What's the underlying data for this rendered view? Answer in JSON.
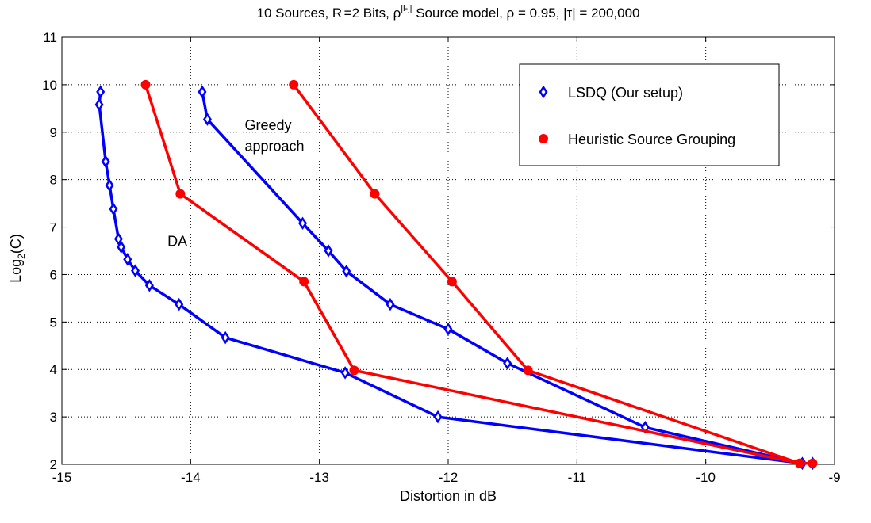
{
  "chart_data": {
    "type": "line",
    "title": {
      "p1": "10 Sources, R",
      "p1_sub": "i",
      "p2": "=2 Bits, ρ",
      "p2_sup": "|i-j|",
      "p3": " Source model, ρ = 0.95, |τ| = 200,000"
    },
    "xlabel": "Distortion in dB",
    "ylabel": {
      "main": "Log",
      "sub": "2",
      "tail": "(C)"
    },
    "xlim": [
      -15,
      -9
    ],
    "ylim": [
      2,
      11
    ],
    "xticks": [
      -15,
      -14,
      -13,
      -12,
      -11,
      -10,
      -9
    ],
    "yticks": [
      2,
      3,
      4,
      5,
      6,
      7,
      8,
      9,
      10,
      11
    ],
    "grid": true,
    "legend_position": "top-right",
    "series": [
      {
        "name": "LSDQ (Our setup)",
        "color": "#0000ff",
        "marker": "diamond",
        "curves": [
          {
            "x": [
              -14.7,
              -14.71,
              -14.66,
              -14.63,
              -14.6,
              -14.56,
              -14.54,
              -14.49,
              -14.43,
              -14.32,
              -14.09,
              -13.73,
              -12.8,
              -12.08,
              -9.25,
              -9.17
            ],
            "y": [
              9.85,
              9.58,
              8.38,
              7.88,
              7.38,
              6.75,
              6.58,
              6.32,
              6.08,
              5.77,
              5.37,
              4.67,
              3.93,
              3.0,
              2.02,
              2.02
            ]
          },
          {
            "x": [
              -13.91,
              -13.87,
              -13.13,
              -12.93,
              -12.79,
              -12.45,
              -12.0,
              -11.54,
              -10.47,
              -9.25,
              -9.17
            ],
            "y": [
              9.85,
              9.27,
              7.08,
              6.5,
              6.07,
              5.37,
              4.85,
              4.13,
              2.78,
              2.02,
              2.02
            ]
          }
        ]
      },
      {
        "name": "Heuristic Source Grouping",
        "color": "#ff0000",
        "marker": "circle",
        "curves": [
          {
            "x": [
              -14.35,
              -14.08,
              -13.12,
              -12.73,
              -9.27,
              -9.17
            ],
            "y": [
              10.0,
              7.7,
              5.85,
              3.98,
              2.02,
              2.02
            ]
          },
          {
            "x": [
              -13.2,
              -12.57,
              -11.97,
              -11.38,
              -9.27,
              -9.17
            ],
            "y": [
              10.0,
              7.7,
              5.85,
              3.98,
              2.02,
              2.02
            ]
          }
        ]
      }
    ],
    "annotations": [
      {
        "text": "Greedy",
        "x": -13.58,
        "y": 9.05
      },
      {
        "text": "approach",
        "x": -13.58,
        "y": 8.6
      },
      {
        "text": "DA",
        "x": -14.18,
        "y": 6.6
      }
    ]
  }
}
